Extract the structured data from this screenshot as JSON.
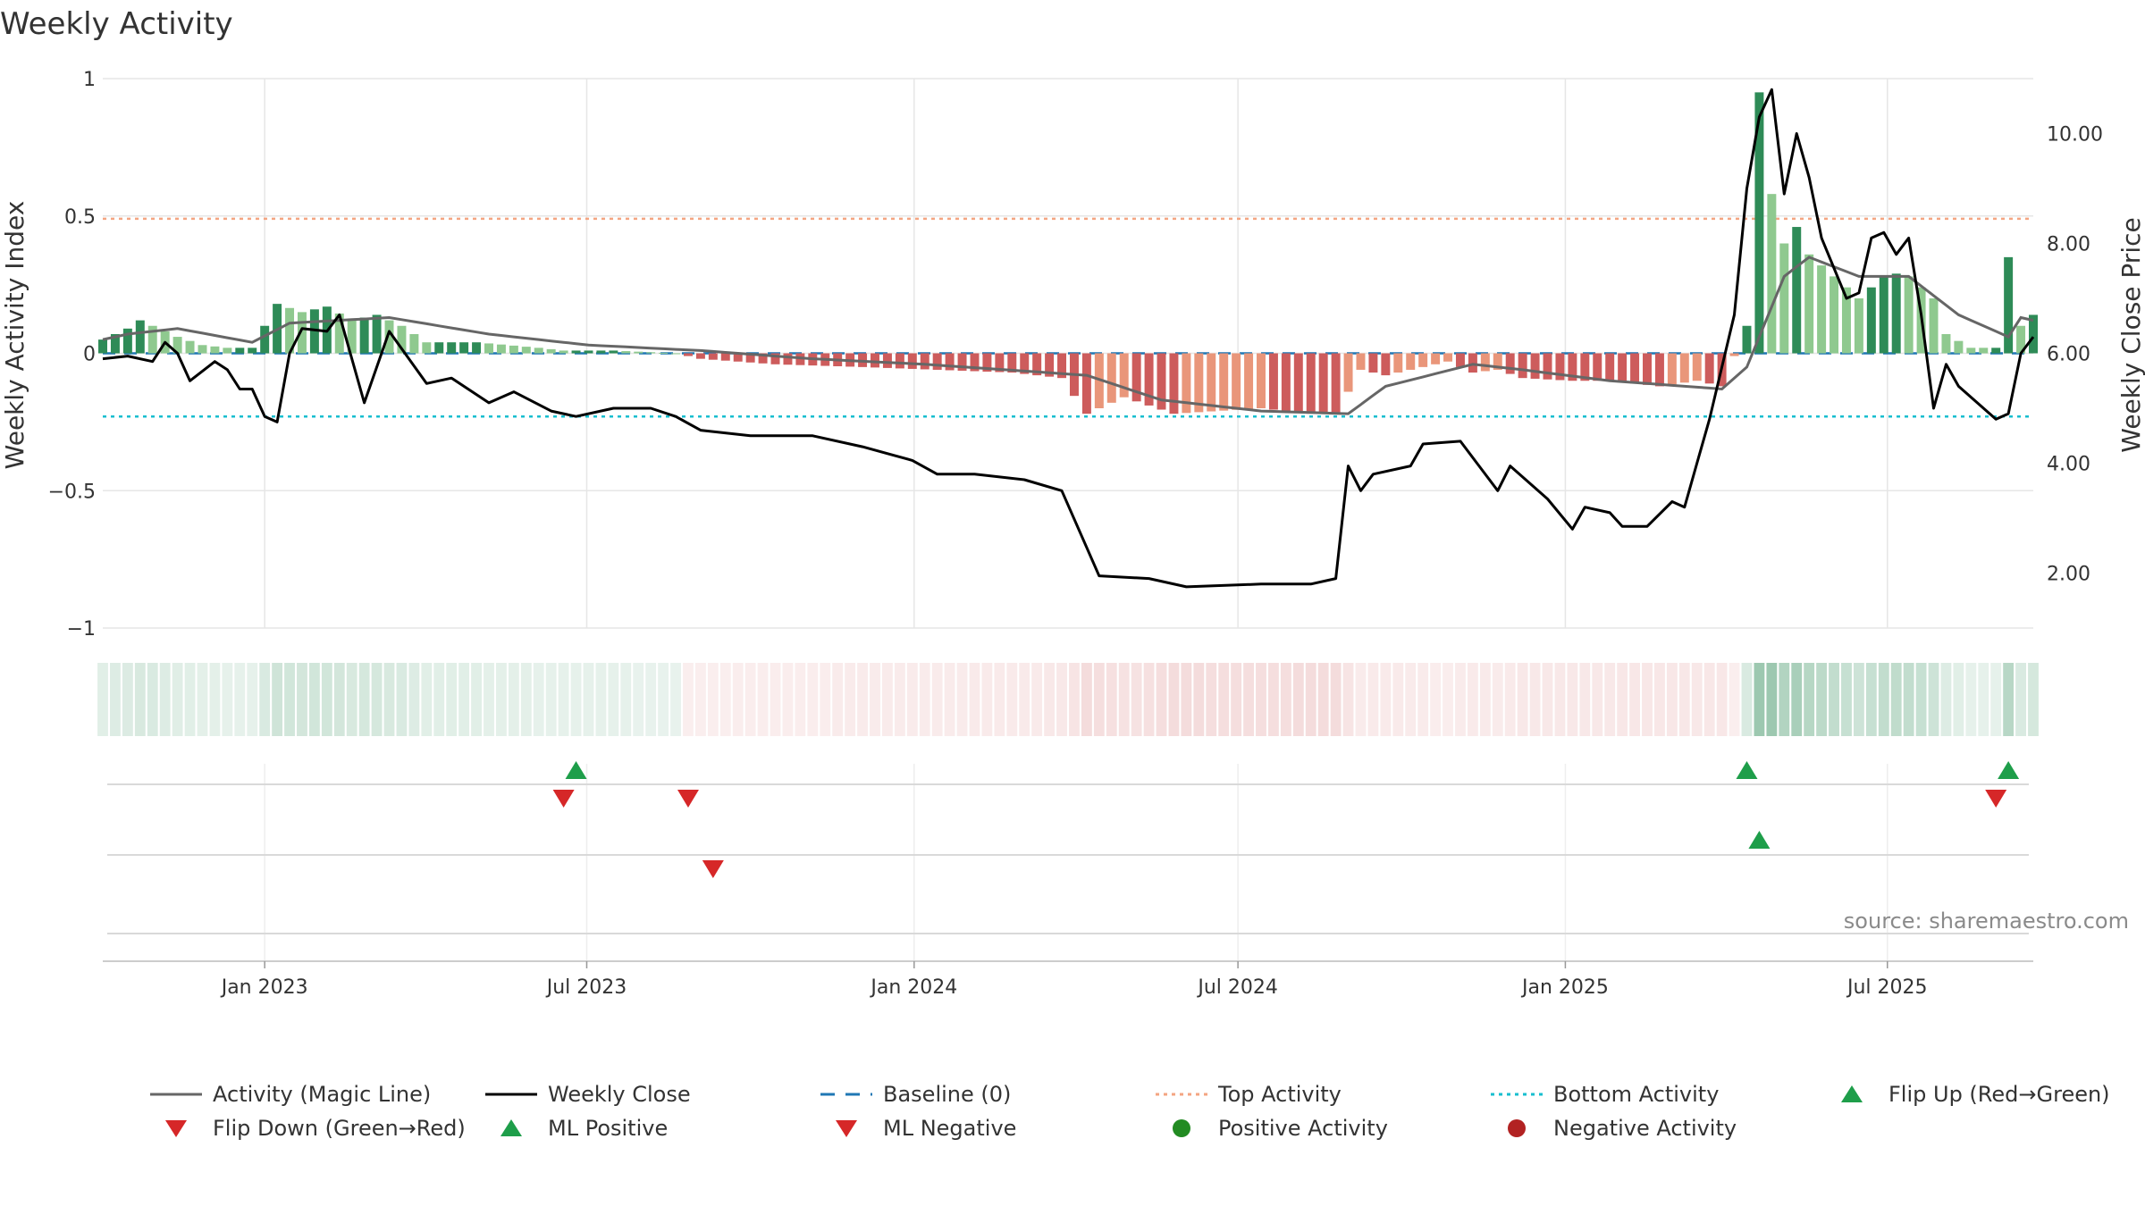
{
  "chart_data": {
    "type": "bar",
    "title": "Weekly Activity",
    "ylabel": "Weekly Activity Index",
    "y2label": "Weekly Close Price",
    "ylim": [
      -1,
      1
    ],
    "y2lim": [
      1.0,
      11.0
    ],
    "yticks": [
      {
        "v": 1,
        "label": "1"
      },
      {
        "v": 0.5,
        "label": "0.5"
      },
      {
        "v": 0,
        "label": "0"
      },
      {
        "v": -0.5,
        "label": "−0.5"
      },
      {
        "v": -1,
        "label": "−1"
      }
    ],
    "y2ticks": [
      {
        "v": 10,
        "label": "10.00"
      },
      {
        "v": 8,
        "label": "8.00"
      },
      {
        "v": 6,
        "label": "6.00"
      },
      {
        "v": 4,
        "label": "4.00"
      },
      {
        "v": 2,
        "label": "2.00"
      }
    ],
    "xlim": [
      "2022-10-02",
      "2025-09-21"
    ],
    "xticks": [
      {
        "date": "2023-01-01",
        "label": "Jan 2023"
      },
      {
        "date": "2023-07-01",
        "label": "Jul 2023"
      },
      {
        "date": "2024-01-01",
        "label": "Jan 2024"
      },
      {
        "date": "2024-07-01",
        "label": "Jul 2024"
      },
      {
        "date": "2025-01-01",
        "label": "Jan 2025"
      },
      {
        "date": "2025-07-01",
        "label": "Jul 2025"
      }
    ],
    "top_activity": 0.49,
    "bottom_activity": -0.23,
    "baseline": 0,
    "activity_anchors": [
      [
        "2022-10-02",
        0.05
      ],
      [
        "2022-10-09",
        0.07
      ],
      [
        "2022-10-16",
        0.09
      ],
      [
        "2022-10-23",
        0.12
      ],
      [
        "2022-10-30",
        0.1
      ],
      [
        "2022-11-13",
        0.06
      ],
      [
        "2022-11-27",
        0.03
      ],
      [
        "2022-12-11",
        0.02
      ],
      [
        "2022-12-25",
        0.02
      ],
      [
        "2023-01-08",
        0.18
      ],
      [
        "2023-01-22",
        0.15
      ],
      [
        "2023-02-05",
        0.17
      ],
      [
        "2023-02-19",
        0.12
      ],
      [
        "2023-03-05",
        0.14
      ],
      [
        "2023-03-19",
        0.1
      ],
      [
        "2023-04-02",
        0.04
      ],
      [
        "2023-04-30",
        0.04
      ],
      [
        "2023-06-04",
        0.02
      ],
      [
        "2023-06-18",
        0.01
      ],
      [
        "2023-07-16",
        0.01
      ],
      [
        "2023-08-20",
        0.0
      ],
      [
        "2023-09-03",
        -0.02
      ],
      [
        "2023-10-15",
        -0.04
      ],
      [
        "2023-12-03",
        -0.05
      ],
      [
        "2024-01-14",
        -0.06
      ],
      [
        "2024-02-25",
        -0.07
      ],
      [
        "2024-03-24",
        -0.09
      ],
      [
        "2024-04-07",
        -0.22
      ],
      [
        "2024-04-28",
        -0.16
      ],
      [
        "2024-05-26",
        -0.22
      ],
      [
        "2024-07-14",
        -0.2
      ],
      [
        "2024-08-11",
        -0.22
      ],
      [
        "2024-08-25",
        -0.22
      ],
      [
        "2024-09-08",
        -0.06
      ],
      [
        "2024-09-22",
        -0.08
      ],
      [
        "2024-10-13",
        -0.05
      ],
      [
        "2024-10-27",
        -0.03
      ],
      [
        "2024-11-10",
        -0.07
      ],
      [
        "2024-11-24",
        -0.06
      ],
      [
        "2024-12-08",
        -0.09
      ],
      [
        "2025-01-05",
        -0.1
      ],
      [
        "2025-01-26",
        -0.1
      ],
      [
        "2025-02-23",
        -0.12
      ],
      [
        "2025-03-16",
        -0.1
      ],
      [
        "2025-03-30",
        -0.12
      ],
      [
        "2025-04-13",
        0.1
      ],
      [
        "2025-04-20",
        0.95
      ],
      [
        "2025-04-27",
        0.58
      ],
      [
        "2025-05-04",
        0.4
      ],
      [
        "2025-05-11",
        0.46
      ],
      [
        "2025-05-18",
        0.36
      ],
      [
        "2025-06-01",
        0.28
      ],
      [
        "2025-06-15",
        0.2
      ],
      [
        "2025-06-29",
        0.28
      ],
      [
        "2025-07-06",
        0.29
      ],
      [
        "2025-07-13",
        0.28
      ],
      [
        "2025-07-27",
        0.2
      ],
      [
        "2025-08-03",
        0.07
      ],
      [
        "2025-08-17",
        0.02
      ],
      [
        "2025-08-31",
        0.02
      ],
      [
        "2025-09-07",
        0.35
      ],
      [
        "2025-09-14",
        0.1
      ],
      [
        "2025-09-21",
        0.14
      ]
    ],
    "magic_anchors": [
      [
        "2022-10-02",
        0.05
      ],
      [
        "2022-10-16",
        0.07
      ],
      [
        "2022-11-13",
        0.09
      ],
      [
        "2022-12-25",
        0.04
      ],
      [
        "2023-01-15",
        0.11
      ],
      [
        "2023-03-12",
        0.13
      ],
      [
        "2023-05-07",
        0.07
      ],
      [
        "2023-07-02",
        0.03
      ],
      [
        "2023-09-03",
        0.01
      ],
      [
        "2023-11-05",
        -0.02
      ],
      [
        "2024-01-07",
        -0.04
      ],
      [
        "2024-04-07",
        -0.08
      ],
      [
        "2024-05-19",
        -0.17
      ],
      [
        "2024-07-14",
        -0.21
      ],
      [
        "2024-09-01",
        -0.22
      ],
      [
        "2024-09-22",
        -0.12
      ],
      [
        "2024-11-10",
        -0.04
      ],
      [
        "2024-12-08",
        -0.06
      ],
      [
        "2025-01-26",
        -0.1
      ],
      [
        "2025-03-30",
        -0.13
      ],
      [
        "2025-04-13",
        -0.05
      ],
      [
        "2025-05-04",
        0.28
      ],
      [
        "2025-05-18",
        0.35
      ],
      [
        "2025-06-15",
        0.28
      ],
      [
        "2025-07-13",
        0.28
      ],
      [
        "2025-08-10",
        0.14
      ],
      [
        "2025-09-07",
        0.06
      ],
      [
        "2025-09-14",
        0.13
      ],
      [
        "2025-09-21",
        0.12
      ]
    ],
    "close_anchors": [
      [
        "2022-10-02",
        5.9
      ],
      [
        "2022-10-16",
        5.95
      ],
      [
        "2022-10-30",
        5.85
      ],
      [
        "2022-11-06",
        6.2
      ],
      [
        "2022-11-13",
        6.0
      ],
      [
        "2022-11-20",
        5.5
      ],
      [
        "2022-12-04",
        5.85
      ],
      [
        "2022-12-11",
        5.7
      ],
      [
        "2022-12-18",
        5.35
      ],
      [
        "2022-12-25",
        5.35
      ],
      [
        "2023-01-01",
        4.85
      ],
      [
        "2023-01-08",
        4.75
      ],
      [
        "2023-01-15",
        6.0
      ],
      [
        "2023-01-22",
        6.45
      ],
      [
        "2023-02-05",
        6.4
      ],
      [
        "2023-02-12",
        6.7
      ],
      [
        "2023-02-26",
        5.1
      ],
      [
        "2023-03-12",
        6.4
      ],
      [
        "2023-04-02",
        5.45
      ],
      [
        "2023-04-16",
        5.55
      ],
      [
        "2023-05-07",
        5.1
      ],
      [
        "2023-05-21",
        5.3
      ],
      [
        "2023-06-11",
        4.95
      ],
      [
        "2023-06-25",
        4.85
      ],
      [
        "2023-07-16",
        5.0
      ],
      [
        "2023-08-06",
        5.0
      ],
      [
        "2023-08-20",
        4.85
      ],
      [
        "2023-09-03",
        4.6
      ],
      [
        "2023-10-01",
        4.5
      ],
      [
        "2023-11-05",
        4.5
      ],
      [
        "2023-12-03",
        4.3
      ],
      [
        "2023-12-31",
        4.05
      ],
      [
        "2024-01-14",
        3.8
      ],
      [
        "2024-02-04",
        3.8
      ],
      [
        "2024-03-03",
        3.7
      ],
      [
        "2024-03-24",
        3.5
      ],
      [
        "2024-04-14",
        1.95
      ],
      [
        "2024-05-12",
        1.9
      ],
      [
        "2024-06-02",
        1.75
      ],
      [
        "2024-07-14",
        1.8
      ],
      [
        "2024-08-11",
        1.8
      ],
      [
        "2024-08-25",
        1.9
      ],
      [
        "2024-09-01",
        3.95
      ],
      [
        "2024-09-08",
        3.5
      ],
      [
        "2024-09-15",
        3.8
      ],
      [
        "2024-10-06",
        3.95
      ],
      [
        "2024-10-13",
        4.35
      ],
      [
        "2024-11-03",
        4.4
      ],
      [
        "2024-11-24",
        3.5
      ],
      [
        "2024-12-01",
        3.95
      ],
      [
        "2024-12-22",
        3.35
      ],
      [
        "2025-01-05",
        2.8
      ],
      [
        "2025-01-12",
        3.2
      ],
      [
        "2025-01-26",
        3.1
      ],
      [
        "2025-02-02",
        2.85
      ],
      [
        "2025-02-16",
        2.85
      ],
      [
        "2025-03-02",
        3.3
      ],
      [
        "2025-03-09",
        3.2
      ],
      [
        "2025-03-16",
        4.0
      ],
      [
        "2025-03-23",
        4.8
      ],
      [
        "2025-04-06",
        6.7
      ],
      [
        "2025-04-13",
        9.0
      ],
      [
        "2025-04-20",
        10.3
      ],
      [
        "2025-04-27",
        10.8
      ],
      [
        "2025-05-04",
        8.9
      ],
      [
        "2025-05-11",
        10.0
      ],
      [
        "2025-05-18",
        9.2
      ],
      [
        "2025-05-25",
        8.1
      ],
      [
        "2025-06-08",
        7.0
      ],
      [
        "2025-06-15",
        7.1
      ],
      [
        "2025-06-22",
        8.1
      ],
      [
        "2025-06-29",
        8.2
      ],
      [
        "2025-07-06",
        7.8
      ],
      [
        "2025-07-13",
        8.1
      ],
      [
        "2025-07-20",
        6.7
      ],
      [
        "2025-07-27",
        5.0
      ],
      [
        "2025-08-03",
        5.8
      ],
      [
        "2025-08-10",
        5.4
      ],
      [
        "2025-08-31",
        4.8
      ],
      [
        "2025-09-07",
        4.9
      ],
      [
        "2025-09-14",
        6.0
      ],
      [
        "2025-09-21",
        6.3
      ]
    ],
    "flip_up": [
      "2023-06-25",
      "2025-04-13",
      "2025-09-07"
    ],
    "flip_down": [
      "2023-06-18",
      "2023-08-27",
      "2025-08-31"
    ],
    "ml_positive": [
      "2025-04-20"
    ],
    "ml_negative": [
      "2023-09-10"
    ],
    "colors": {
      "strong_pos": "#2e8b57",
      "weak_pos": "#8fc98f",
      "strong_neg": "#cd5c5c",
      "weak_neg": "#e9967a",
      "magic_line": "#666666",
      "close_line": "#000000",
      "baseline": "#1f77b4",
      "top_activity": "#f4a582",
      "bottom_activity": "#17becf",
      "flip_up": "#1e9e4a",
      "flip_down": "#d62728",
      "positive_dot": "#228b22",
      "negative_dot": "#b22222",
      "grid": "#e6e6e6"
    },
    "legend": [
      {
        "label": "Activity (Magic Line)",
        "symbol": "line-gray"
      },
      {
        "label": "Weekly Close",
        "symbol": "line-black"
      },
      {
        "label": "Baseline (0)",
        "symbol": "dash-blue"
      },
      {
        "label": "Top Activity",
        "symbol": "dot-orange"
      },
      {
        "label": "Bottom Activity",
        "symbol": "dot-cyan"
      },
      {
        "label": "Flip Up (Red→Green)",
        "symbol": "tri-up"
      },
      {
        "label": "Flip Down (Green→Red)",
        "symbol": "tri-down"
      },
      {
        "label": "ML Positive",
        "symbol": "tri-up"
      },
      {
        "label": "ML Negative",
        "symbol": "tri-down"
      },
      {
        "label": "Positive Activity",
        "symbol": "circle-green"
      },
      {
        "label": "Negative Activity",
        "symbol": "circle-red"
      }
    ],
    "source": "source: sharemaestro.com"
  }
}
